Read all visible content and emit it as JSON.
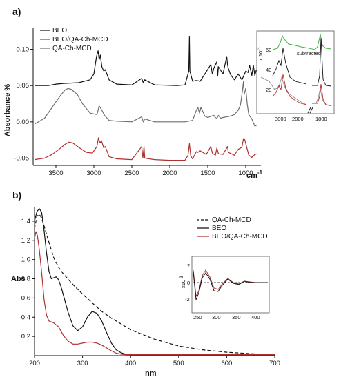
{
  "colors": {
    "black": "#111111",
    "red": "#b03030",
    "grey": "#6e6e6e",
    "green": "#3fb23f",
    "dark": "#333333"
  },
  "panel_a": {
    "letter": "a)",
    "ylabel": "Absorbance %",
    "xunit": "cm",
    "xunit_sup": "-1",
    "legend": [
      "BEO",
      "BEO/QA-Ch-MCD",
      "QA-Ch-MCD"
    ],
    "inset": {
      "ylabel": "x 10",
      "ylabel_sup": "-3",
      "annotation": "subtracted",
      "yticks": [
        "60",
        "40",
        "20"
      ],
      "xticks": [
        "3000",
        "2800",
        "1800"
      ]
    }
  },
  "panel_b": {
    "letter": "b)",
    "ylabel": "Abs",
    "xlabel": "nm",
    "legend": [
      "QA-Ch-MCD",
      "BEO",
      "BEO/QA-Ch-MCD"
    ],
    "inset": {
      "ylabel": "x10",
      "ylabel_sup": "-3",
      "yticks": [
        "2",
        "0",
        "-2"
      ],
      "xticks": [
        "250",
        "300",
        "350",
        "400"
      ]
    }
  },
  "chart_data": [
    {
      "type": "line",
      "title": "",
      "xlabel": "",
      "ylabel": "Absorbance %",
      "xlim": [
        3800,
        800
      ],
      "ylim": [
        -0.06,
        0.13
      ],
      "xticks": [
        3500,
        3000,
        2500,
        2000,
        1500,
        1000
      ],
      "yticks": [
        -0.05,
        0.0,
        0.05,
        0.1
      ],
      "ytick_labels": [
        "-0.05",
        "0.00",
        "0.05",
        "0.10"
      ],
      "legend_position": "top-left",
      "series": [
        {
          "name": "BEO",
          "color": "#111111",
          "dash": "",
          "x": [
            3780,
            3600,
            3500,
            3400,
            3200,
            3050,
            3000,
            2965,
            2945,
            2930,
            2915,
            2895,
            2870,
            2850,
            2800,
            2700,
            2500,
            2370,
            2350,
            2330,
            2200,
            1900,
            1800,
            1750,
            1742,
            1735,
            1700,
            1650,
            1600,
            1460,
            1440,
            1420,
            1380,
            1370,
            1360,
            1300,
            1250,
            1240,
            1230,
            1200,
            1150,
            1100,
            1050,
            1000,
            970,
            950,
            920,
            900,
            880,
            860
          ],
          "y": [
            0.05,
            0.05,
            0.052,
            0.053,
            0.054,
            0.058,
            0.066,
            0.09,
            0.098,
            0.086,
            0.092,
            0.076,
            0.07,
            0.072,
            0.058,
            0.052,
            0.051,
            0.06,
            0.054,
            0.058,
            0.051,
            0.05,
            0.051,
            0.07,
            0.118,
            0.07,
            0.056,
            0.057,
            0.056,
            0.079,
            0.066,
            0.074,
            0.083,
            0.063,
            0.076,
            0.066,
            0.09,
            0.079,
            0.074,
            0.065,
            0.058,
            0.066,
            0.058,
            0.07,
            0.068,
            0.078,
            0.064,
            0.078,
            0.064,
            0.072
          ]
        },
        {
          "name": "QA-Ch-MCD",
          "color": "#6e6e6e",
          "dash": "",
          "x": [
            3780,
            3650,
            3550,
            3450,
            3380,
            3340,
            3300,
            3220,
            3150,
            3050,
            2960,
            2930,
            2900,
            2860,
            2800,
            2700,
            2500,
            2370,
            2350,
            2330,
            2200,
            2000,
            1800,
            1700,
            1650,
            1630,
            1610,
            1590,
            1560,
            1540,
            1500,
            1450,
            1420,
            1400,
            1380,
            1360,
            1330,
            1300,
            1200,
            1150,
            1100,
            1070,
            1045,
            1030,
            1020,
            1000,
            980,
            960,
            920,
            880,
            850
          ],
          "y": [
            -0.003,
            0.005,
            0.02,
            0.035,
            0.044,
            0.046,
            0.045,
            0.038,
            0.025,
            0.012,
            0.01,
            0.022,
            0.017,
            0.009,
            0.002,
            0.001,
            0.0,
            0.007,
            0.0,
            0.004,
            0.0,
            0.0,
            0.0,
            0.002,
            0.016,
            0.02,
            0.012,
            0.02,
            0.013,
            0.008,
            0.006,
            0.008,
            0.009,
            0.006,
            0.005,
            0.009,
            0.005,
            0.006,
            0.008,
            0.01,
            0.016,
            0.023,
            0.042,
            0.056,
            0.038,
            0.046,
            0.024,
            0.01,
            0.004,
            -0.006,
            -0.004
          ]
        },
        {
          "name": "BEO/QA-Ch-MCD",
          "color": "#b03030",
          "dash": "",
          "x": [
            3780,
            3650,
            3550,
            3450,
            3380,
            3330,
            3280,
            3200,
            3100,
            3020,
            2960,
            2940,
            2920,
            2900,
            2870,
            2850,
            2800,
            2700,
            2500,
            2370,
            2355,
            2340,
            2330,
            2200,
            2000,
            1800,
            1760,
            1742,
            1725,
            1700,
            1650,
            1630,
            1600,
            1520,
            1460,
            1440,
            1400,
            1380,
            1360,
            1300,
            1250,
            1240,
            1230,
            1150,
            1100,
            1050,
            1030,
            1015,
            1000,
            980,
            960,
            920,
            880,
            850
          ],
          "y": [
            -0.052,
            -0.05,
            -0.045,
            -0.037,
            -0.031,
            -0.028,
            -0.029,
            -0.035,
            -0.042,
            -0.043,
            -0.034,
            -0.022,
            -0.029,
            -0.026,
            -0.036,
            -0.034,
            -0.048,
            -0.051,
            -0.052,
            -0.034,
            -0.05,
            -0.034,
            -0.05,
            -0.052,
            -0.053,
            -0.053,
            -0.046,
            -0.03,
            -0.047,
            -0.051,
            -0.041,
            -0.042,
            -0.04,
            -0.045,
            -0.034,
            -0.043,
            -0.046,
            -0.036,
            -0.044,
            -0.045,
            -0.036,
            -0.034,
            -0.042,
            -0.046,
            -0.038,
            -0.035,
            -0.023,
            -0.024,
            -0.03,
            -0.038,
            -0.046,
            -0.049,
            -0.045,
            -0.044
          ]
        }
      ]
    },
    {
      "type": "line",
      "title": "",
      "xlabel": "nm",
      "ylabel": "Abs",
      "xlim": [
        200,
        700
      ],
      "ylim": [
        0.0,
        1.55
      ],
      "xticks": [
        200,
        300,
        400,
        500,
        600,
        700
      ],
      "yticks": [
        0.2,
        0.4,
        0.6,
        0.8,
        1.0,
        1.2,
        1.4
      ],
      "ytick_labels": [
        "0.2",
        "0.4",
        "0.6",
        "0.8",
        "1.0",
        "1.2",
        "1.4"
      ],
      "legend_position": "top-right",
      "series": [
        {
          "name": "QA-Ch-MCD",
          "color": "#111111",
          "dash": "5,3",
          "x": [
            200,
            205,
            210,
            215,
            220,
            230,
            240,
            250,
            260,
            280,
            300,
            320,
            340,
            360,
            380,
            400,
            450,
            500,
            550,
            600,
            650,
            700
          ],
          "y": [
            1.32,
            1.45,
            1.47,
            1.43,
            1.35,
            1.18,
            1.02,
            0.92,
            0.85,
            0.74,
            0.64,
            0.55,
            0.46,
            0.39,
            0.33,
            0.27,
            0.17,
            0.1,
            0.06,
            0.035,
            0.02,
            0.01
          ]
        },
        {
          "name": "BEO",
          "color": "#111111",
          "dash": "",
          "x": [
            200,
            205,
            210,
            215,
            220,
            225,
            230,
            235,
            240,
            245,
            250,
            255,
            260,
            270,
            280,
            290,
            300,
            310,
            320,
            330,
            340,
            350,
            360,
            370,
            380,
            390,
            400,
            450,
            500,
            600,
            700
          ],
          "y": [
            1.4,
            1.5,
            1.53,
            1.49,
            1.3,
            1.07,
            0.88,
            0.8,
            0.81,
            0.82,
            0.79,
            0.72,
            0.63,
            0.45,
            0.31,
            0.26,
            0.3,
            0.4,
            0.46,
            0.44,
            0.36,
            0.24,
            0.13,
            0.06,
            0.03,
            0.015,
            0.01,
            0.01,
            0.01,
            0.01,
            0.01
          ]
        },
        {
          "name": "BEO/QA-Ch-MCD",
          "color": "#b03030",
          "dash": "",
          "x": [
            200,
            203,
            206,
            210,
            215,
            220,
            225,
            230,
            240,
            250,
            260,
            270,
            280,
            290,
            300,
            310,
            320,
            330,
            340,
            350,
            360,
            370,
            380,
            390,
            400,
            450,
            500,
            600,
            700
          ],
          "y": [
            1.22,
            1.29,
            1.25,
            1.1,
            0.86,
            0.58,
            0.42,
            0.36,
            0.34,
            0.3,
            0.21,
            0.15,
            0.12,
            0.12,
            0.13,
            0.14,
            0.14,
            0.13,
            0.11,
            0.08,
            0.05,
            0.025,
            0.015,
            0.01,
            0.01,
            0.01,
            0.01,
            0.01,
            0.01
          ]
        }
      ]
    }
  ]
}
